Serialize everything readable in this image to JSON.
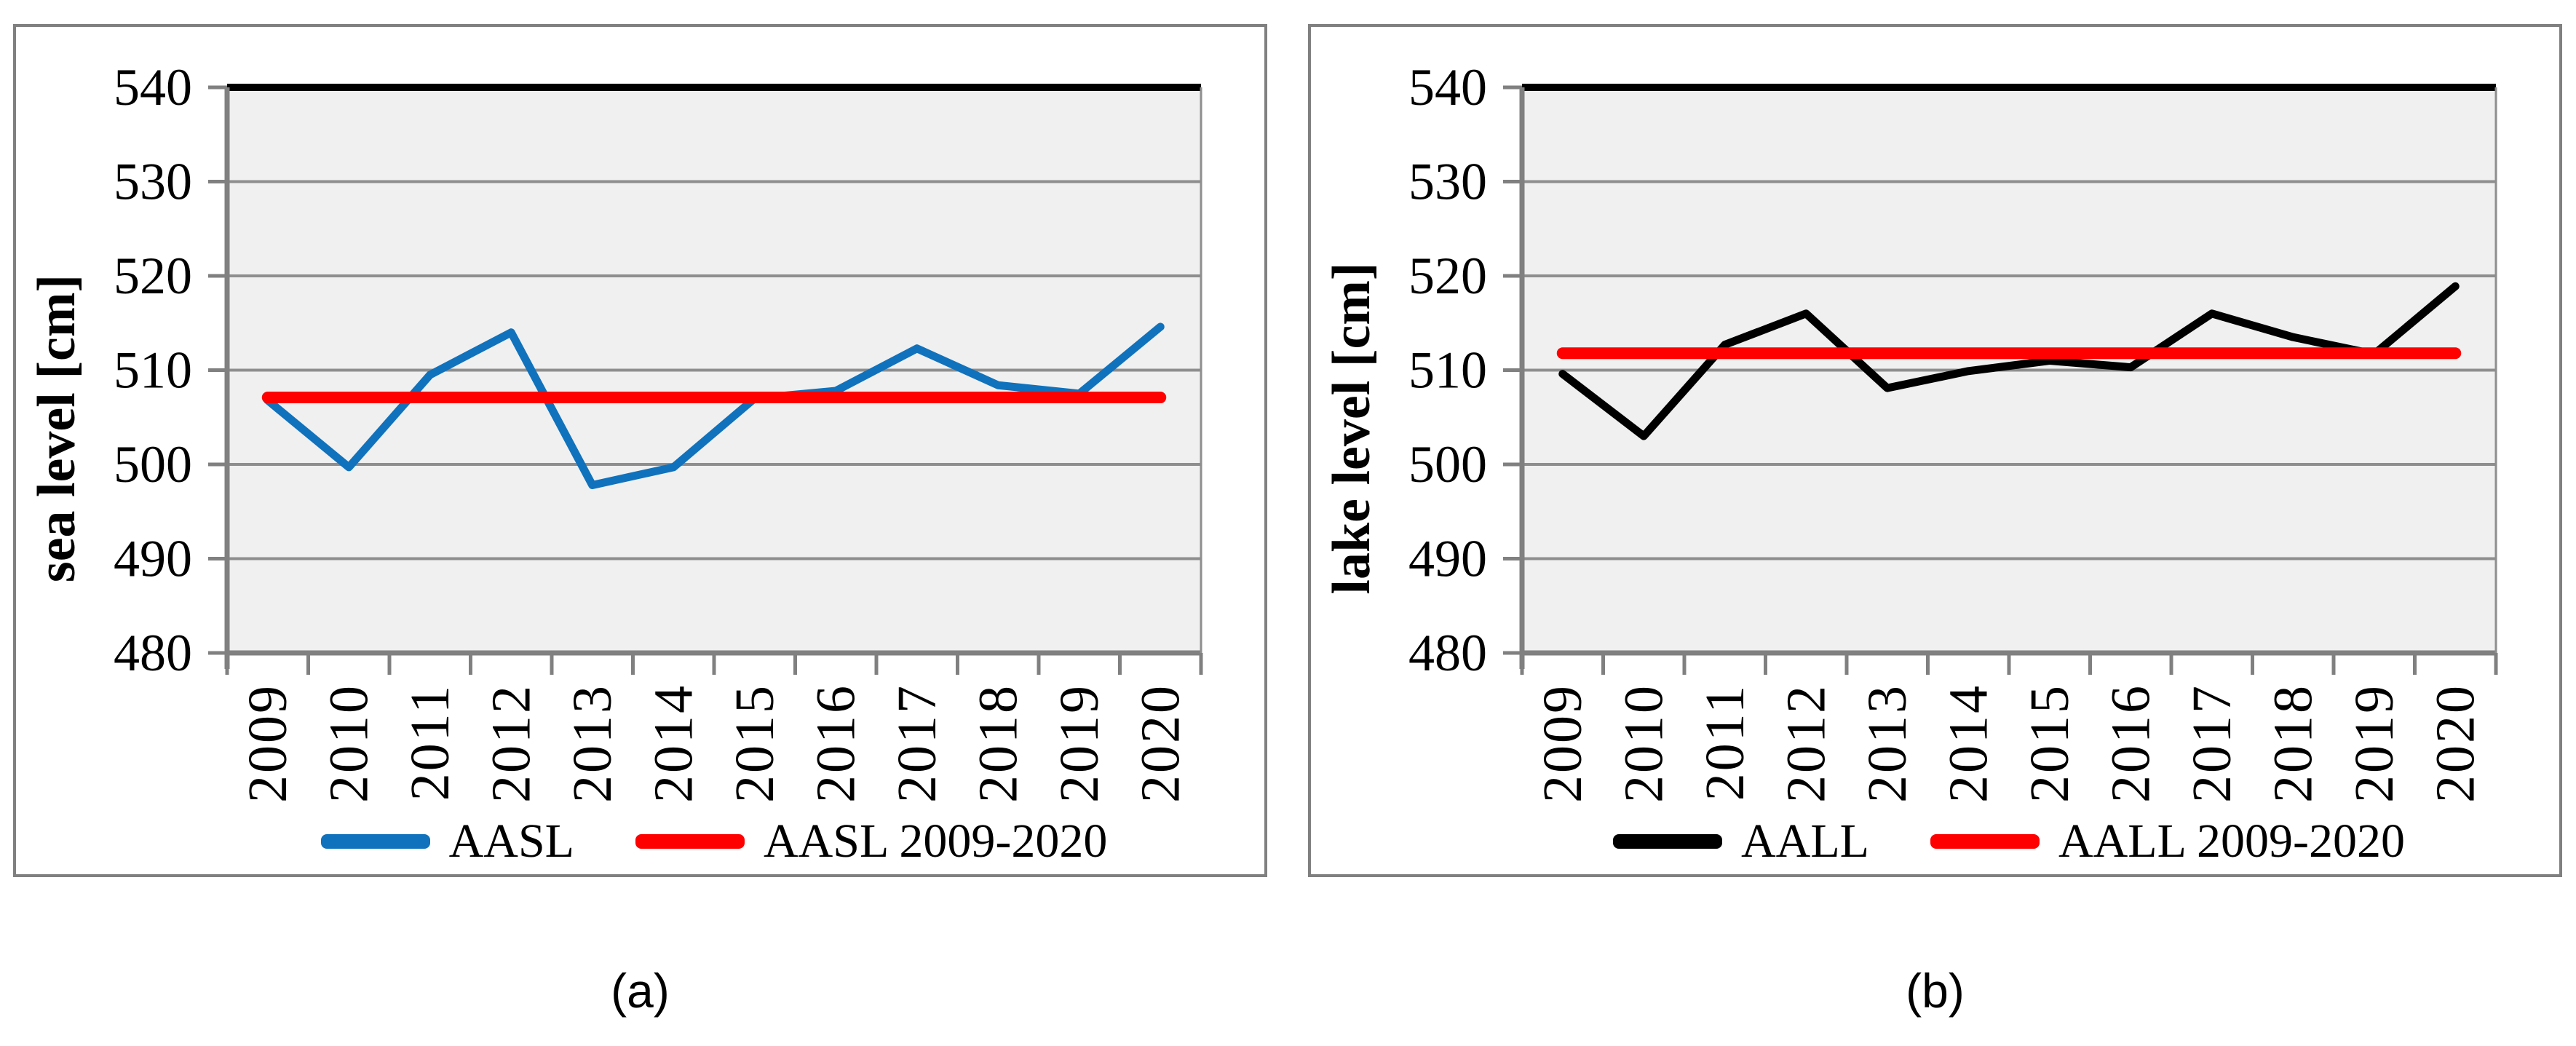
{
  "styles": {
    "plot_bg": "#F0F0F0",
    "gridline": "#8E8E8E",
    "axis": "#808080",
    "top_border": "#000000"
  },
  "chart_data": [
    {
      "type": "line",
      "caption": "(a)",
      "ylabel": "sea level [cm]",
      "xlabel": "",
      "ylim": [
        480,
        540
      ],
      "yticks": [
        480,
        490,
        500,
        510,
        520,
        530,
        540
      ],
      "grid": "horizontal",
      "legend_position": "bottom",
      "categories": [
        "2009",
        "2010",
        "2011",
        "2012",
        "2013",
        "2014",
        "2015",
        "2016",
        "2017",
        "2018",
        "2019",
        "2020"
      ],
      "series": [
        {
          "name": "AASL",
          "color": "#1072BC",
          "values": [
            506.8,
            499.7,
            509.5,
            514.0,
            497.8,
            499.7,
            507.0,
            507.8,
            512.3,
            508.4,
            507.5,
            514.6
          ]
        },
        {
          "name": "AASL 2009-2020",
          "color": "#FF0000",
          "mean": 507.1
        }
      ]
    },
    {
      "type": "line",
      "caption": "(b)",
      "ylabel": "lake level [cm]",
      "xlabel": "",
      "ylim": [
        480,
        540
      ],
      "yticks": [
        480,
        490,
        500,
        510,
        520,
        530,
        540
      ],
      "grid": "horizontal",
      "legend_position": "bottom",
      "categories": [
        "2009",
        "2010",
        "2011",
        "2012",
        "2013",
        "2014",
        "2015",
        "2016",
        "2017",
        "2018",
        "2019",
        "2020"
      ],
      "series": [
        {
          "name": "AALL",
          "color": "#000000",
          "values": [
            509.6,
            503.0,
            512.7,
            516.0,
            508.1,
            509.9,
            511.0,
            510.3,
            516.0,
            513.5,
            511.7,
            518.9
          ]
        },
        {
          "name": "AALL 2009-2020",
          "color": "#FF0000",
          "mean": 511.8
        }
      ]
    }
  ]
}
